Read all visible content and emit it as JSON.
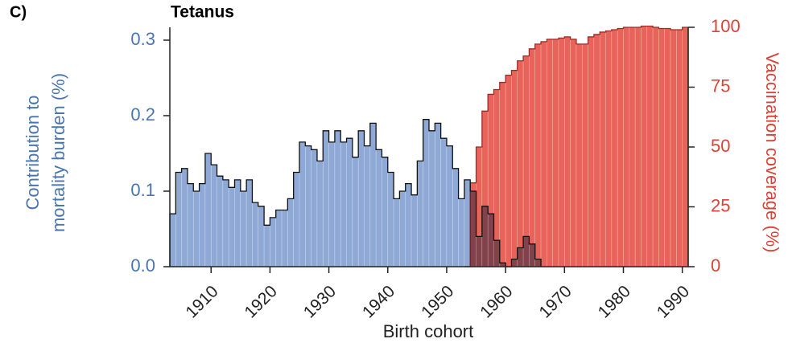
{
  "panel_label": "C)",
  "chart_data": {
    "type": "bar",
    "title": "Tetanus",
    "x_label": "Birth cohort",
    "y_label": [
      "Contribution to",
      "mortality burden (%)"
    ],
    "y2_label": "Vaccination coverage (%)",
    "x": [
      1903,
      1904,
      1905,
      1906,
      1907,
      1908,
      1909,
      1910,
      1911,
      1912,
      1913,
      1914,
      1915,
      1916,
      1917,
      1918,
      1919,
      1920,
      1921,
      1922,
      1923,
      1924,
      1925,
      1926,
      1927,
      1928,
      1929,
      1930,
      1931,
      1932,
      1933,
      1934,
      1935,
      1936,
      1937,
      1938,
      1939,
      1940,
      1941,
      1942,
      1943,
      1944,
      1945,
      1946,
      1947,
      1948,
      1949,
      1950,
      1951,
      1952,
      1953,
      1954,
      1955,
      1956,
      1957,
      1958,
      1959,
      1960,
      1961,
      1962,
      1963,
      1964,
      1965,
      1966,
      1967,
      1968,
      1969,
      1970,
      1971,
      1972,
      1973,
      1974,
      1975,
      1976,
      1977,
      1978,
      1979,
      1980,
      1981,
      1982,
      1983,
      1984,
      1985,
      1986,
      1987,
      1988,
      1989,
      1990
    ],
    "series": [
      {
        "name": "Contribution to mortality burden",
        "color": "#8fa9d6",
        "values": [
          0.07,
          0.125,
          0.13,
          0.11,
          0.1,
          0.11,
          0.15,
          0.135,
          0.12,
          0.115,
          0.105,
          0.115,
          0.1,
          0.115,
          0.085,
          0.08,
          0.055,
          0.065,
          0.075,
          0.075,
          0.09,
          0.125,
          0.165,
          0.16,
          0.155,
          0.14,
          0.18,
          0.165,
          0.18,
          0.165,
          0.17,
          0.145,
          0.18,
          0.16,
          0.19,
          0.155,
          0.145,
          0.125,
          0.09,
          0.1,
          0.11,
          0.095,
          0.14,
          0.195,
          0.18,
          0.19,
          0.17,
          0.16,
          0.13,
          0.09,
          0.115,
          0.1,
          0.04,
          0.08,
          0.07,
          0.035,
          0.005,
          0.0,
          0.01,
          0.025,
          0.04,
          0.03,
          0.01,
          null,
          null,
          null,
          null,
          null,
          null,
          null,
          null,
          null,
          null,
          null,
          null,
          null,
          null,
          null,
          null,
          null,
          null,
          null,
          null,
          null,
          null,
          null,
          null,
          null
        ]
      },
      {
        "name": "Vaccination coverage",
        "color": "#e8635a",
        "axis": "y2",
        "values": [
          null,
          null,
          null,
          null,
          null,
          null,
          null,
          null,
          null,
          null,
          null,
          null,
          null,
          null,
          null,
          null,
          null,
          null,
          null,
          null,
          null,
          null,
          null,
          null,
          null,
          null,
          null,
          null,
          null,
          null,
          null,
          null,
          null,
          null,
          null,
          null,
          null,
          null,
          null,
          null,
          null,
          null,
          null,
          null,
          null,
          null,
          null,
          null,
          null,
          null,
          0,
          35,
          50,
          65,
          72,
          74,
          77,
          80,
          82,
          86,
          88,
          91,
          93,
          94,
          95,
          95,
          95.5,
          96,
          95,
          93,
          93,
          96,
          97,
          98,
          98.5,
          99,
          99.5,
          100,
          100,
          100,
          100.5,
          100.5,
          100,
          99.5,
          99.5,
          99,
          99,
          100
        ]
      }
    ],
    "xlim": [
      1903,
      1991
    ],
    "xticks": [
      1910,
      1920,
      1930,
      1940,
      1950,
      1960,
      1970,
      1980,
      1990
    ],
    "ylim": [
      0,
      0.317
    ],
    "yticks": [
      {
        "value": 0,
        "label": "0.0"
      },
      0.1,
      0.2,
      0.3
    ],
    "y2lim": [
      0,
      100
    ],
    "y2ticks": [
      0,
      25,
      50,
      75,
      100
    ]
  }
}
